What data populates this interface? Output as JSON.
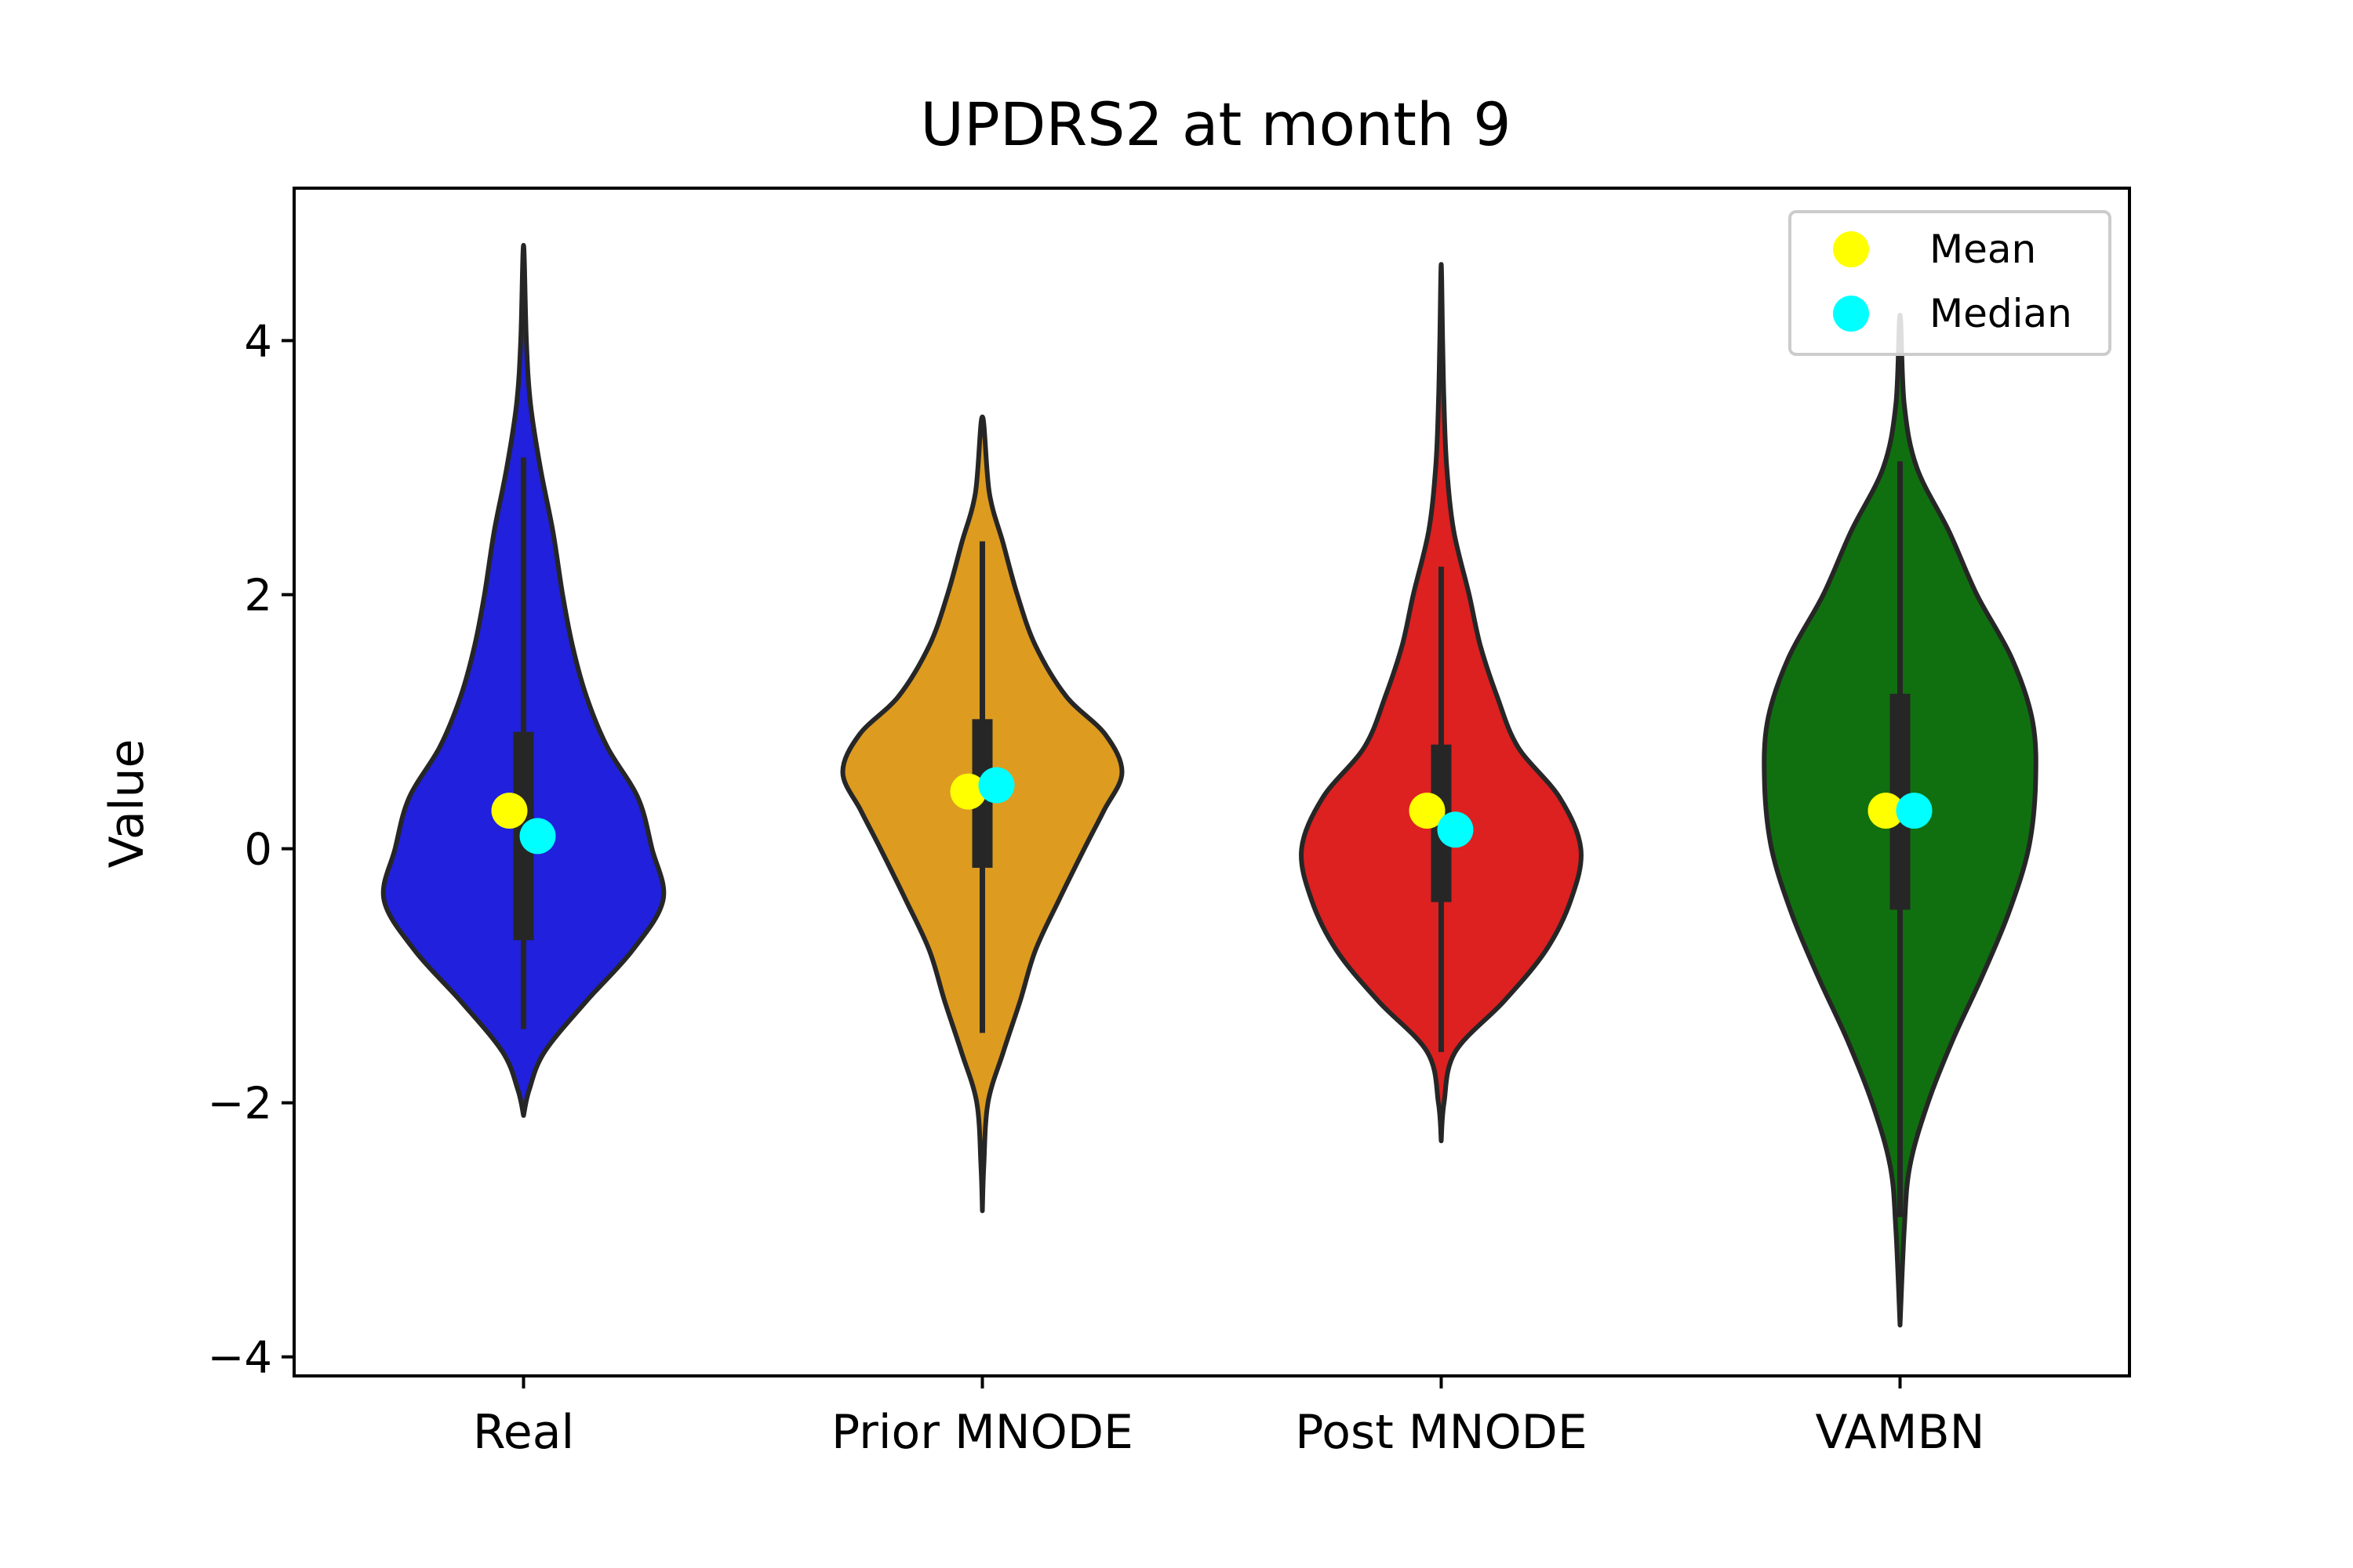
{
  "chart_data": {
    "type": "violin",
    "title": "UPDRS2 at month 9",
    "xlabel": "",
    "ylabel": "Value",
    "ylim": [
      -4.15,
      5.2
    ],
    "yticks": [
      -4,
      -2,
      0,
      2,
      4
    ],
    "ytick_labels": [
      "−4",
      "−2",
      "0",
      "2",
      "4"
    ],
    "categories": [
      "Real",
      "Prior MNODE",
      "Post MNODE",
      "VAMBN"
    ],
    "legend": {
      "placement": "top-right",
      "entries": [
        {
          "label": "Mean",
          "color": "#ffff00"
        },
        {
          "label": "Median",
          "color": "#00ffff"
        }
      ]
    },
    "series": [
      {
        "category": "Real",
        "color": "#2020dd",
        "min": -2.1,
        "max": 4.75,
        "whisker": [
          -1.42,
          3.08
        ],
        "q1": -0.72,
        "q3": 0.92,
        "mean": 0.3,
        "median": 0.1,
        "density": [
          [
            -2.1,
            0.0
          ],
          [
            -1.9,
            0.04
          ],
          [
            -1.6,
            0.15
          ],
          [
            -1.2,
            0.45
          ],
          [
            -0.8,
            0.78
          ],
          [
            -0.4,
            1.0
          ],
          [
            0.0,
            0.92
          ],
          [
            0.4,
            0.82
          ],
          [
            0.8,
            0.6
          ],
          [
            1.2,
            0.45
          ],
          [
            1.6,
            0.35
          ],
          [
            2.0,
            0.28
          ],
          [
            2.5,
            0.21
          ],
          [
            3.0,
            0.12
          ],
          [
            3.5,
            0.05
          ],
          [
            4.0,
            0.02
          ],
          [
            4.75,
            0.0
          ]
        ]
      },
      {
        "category": "Prior MNODE",
        "color": "#dd9b20",
        "min": -2.85,
        "max": 3.4,
        "whisker": [
          -1.45,
          2.42
        ],
        "q1": -0.15,
        "q3": 1.02,
        "mean": 0.45,
        "median": 0.5,
        "density": [
          [
            -2.85,
            0.0
          ],
          [
            -2.5,
            0.01
          ],
          [
            -2.0,
            0.04
          ],
          [
            -1.6,
            0.15
          ],
          [
            -1.2,
            0.27
          ],
          [
            -0.8,
            0.38
          ],
          [
            -0.4,
            0.55
          ],
          [
            0.0,
            0.73
          ],
          [
            0.3,
            0.87
          ],
          [
            0.6,
            1.0
          ],
          [
            0.9,
            0.88
          ],
          [
            1.2,
            0.6
          ],
          [
            1.6,
            0.38
          ],
          [
            2.0,
            0.25
          ],
          [
            2.4,
            0.15
          ],
          [
            2.8,
            0.05
          ],
          [
            3.4,
            0.0
          ]
        ]
      },
      {
        "category": "Post MNODE",
        "color": "#dd2020",
        "min": -2.3,
        "max": 4.6,
        "whisker": [
          -1.6,
          2.22
        ],
        "q1": -0.42,
        "q3": 0.82,
        "mean": 0.3,
        "median": 0.15,
        "density": [
          [
            -2.3,
            0.0
          ],
          [
            -2.0,
            0.02
          ],
          [
            -1.6,
            0.1
          ],
          [
            -1.2,
            0.45
          ],
          [
            -0.8,
            0.75
          ],
          [
            -0.4,
            0.93
          ],
          [
            0.0,
            1.0
          ],
          [
            0.4,
            0.85
          ],
          [
            0.8,
            0.55
          ],
          [
            1.2,
            0.4
          ],
          [
            1.6,
            0.28
          ],
          [
            2.0,
            0.2
          ],
          [
            2.5,
            0.09
          ],
          [
            3.0,
            0.04
          ],
          [
            3.5,
            0.02
          ],
          [
            4.0,
            0.01
          ],
          [
            4.6,
            0.0
          ]
        ]
      },
      {
        "category": "VAMBN",
        "color": "#10700f",
        "min": -3.75,
        "max": 4.2,
        "whisker": [
          -2.9,
          3.05
        ],
        "q1": -0.48,
        "q3": 1.22,
        "mean": 0.3,
        "median": 0.3,
        "density": [
          [
            -3.75,
            0.0
          ],
          [
            -3.0,
            0.03
          ],
          [
            -2.5,
            0.07
          ],
          [
            -2.0,
            0.2
          ],
          [
            -1.5,
            0.38
          ],
          [
            -1.0,
            0.59
          ],
          [
            -0.5,
            0.78
          ],
          [
            0.0,
            0.92
          ],
          [
            0.5,
            0.97
          ],
          [
            1.0,
            0.95
          ],
          [
            1.5,
            0.8
          ],
          [
            2.0,
            0.55
          ],
          [
            2.5,
            0.35
          ],
          [
            3.0,
            0.12
          ],
          [
            3.5,
            0.03
          ],
          [
            4.2,
            0.0
          ]
        ]
      }
    ]
  }
}
